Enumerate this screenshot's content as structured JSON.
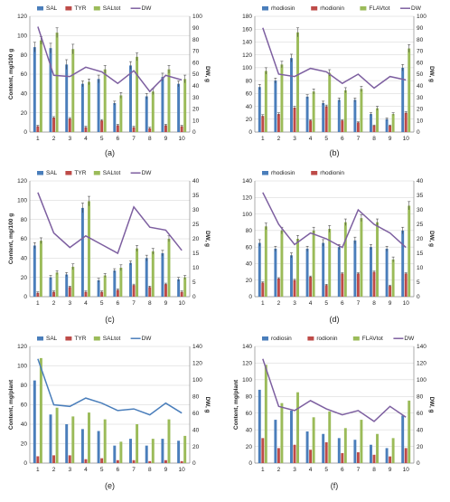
{
  "chart_data": [
    {
      "panel": "(a)",
      "type": "bar",
      "ylabel": "Content, mg/100 g",
      "y2label": "DW, g",
      "ylim": [
        0,
        120
      ],
      "y2lim": [
        0,
        100
      ],
      "ystep": 20,
      "y2step": 10,
      "categories": [
        "1",
        "2",
        "3",
        "4",
        "5",
        "6",
        "7",
        "8",
        "9",
        "10"
      ],
      "series": [
        {
          "name": "SAL",
          "color": "#4a7ebb",
          "values": [
            88,
            87,
            70,
            50,
            55,
            30,
            69,
            37,
            57,
            50
          ],
          "errors": [
            5,
            5,
            5,
            3,
            4,
            2,
            4,
            3,
            4,
            3
          ]
        },
        {
          "name": "TYR",
          "color": "#be4b48",
          "values": [
            6,
            15,
            14,
            5,
            12,
            7,
            5,
            4,
            7,
            6
          ],
          "errors": [
            1,
            1,
            1,
            1,
            1,
            1,
            1,
            1,
            1,
            1
          ]
        },
        {
          "name": "SALtot",
          "color": "#9bbb59",
          "values": [
            95,
            103,
            86,
            52,
            65,
            38,
            78,
            42,
            65,
            55
          ],
          "errors": [
            4,
            5,
            5,
            3,
            4,
            3,
            4,
            3,
            4,
            4
          ]
        }
      ],
      "line": {
        "name": "DW",
        "color": "#7d5fa0",
        "values": [
          91,
          49,
          48,
          56,
          52,
          42,
          53,
          35,
          49,
          45
        ]
      },
      "legend": "top"
    },
    {
      "panel": "(b)",
      "type": "bar",
      "ylabel": "",
      "y2label": "DW, g",
      "ylim": [
        0,
        180
      ],
      "y2lim": [
        0,
        100
      ],
      "ystep": 20,
      "y2step": 10,
      "categories": [
        "1",
        "2",
        "3",
        "4",
        "5",
        "6",
        "7",
        "8",
        "9",
        "10"
      ],
      "series": [
        {
          "name": "rhodiosin",
          "color": "#4a7ebb",
          "values": [
            70,
            80,
            115,
            55,
            45,
            50,
            50,
            28,
            20,
            100
          ],
          "errors": [
            4,
            4,
            6,
            3,
            3,
            3,
            3,
            2,
            2,
            5
          ]
        },
        {
          "name": "rhodionin",
          "color": "#be4b48",
          "values": [
            25,
            28,
            38,
            18,
            40,
            18,
            15,
            10,
            10,
            30
          ],
          "errors": [
            2,
            2,
            2,
            1,
            2,
            1,
            1,
            1,
            1,
            2
          ]
        },
        {
          "name": "FLAVtot",
          "color": "#9bbb59",
          "values": [
            95,
            105,
            155,
            63,
            92,
            65,
            67,
            37,
            28,
            130
          ],
          "errors": [
            5,
            5,
            7,
            4,
            5,
            4,
            4,
            3,
            2,
            6
          ]
        }
      ],
      "line": {
        "name": "DW",
        "color": "#7d5fa0",
        "values": [
          90,
          50,
          48,
          55,
          52,
          42,
          50,
          38,
          48,
          45
        ]
      },
      "legend": "top"
    },
    {
      "panel": "(c)",
      "type": "bar",
      "ylabel": "Content, mg/100 g",
      "y2label": "DW, g",
      "ylim": [
        0,
        120
      ],
      "y2lim": [
        0,
        40
      ],
      "ystep": 20,
      "y2step": 5,
      "categories": [
        "1",
        "2",
        "3",
        "4",
        "5",
        "6",
        "7",
        "8",
        "9",
        "10"
      ],
      "series": [
        {
          "name": "SAL",
          "color": "#4a7ebb",
          "values": [
            53,
            20,
            23,
            92,
            17,
            27,
            35,
            40,
            45,
            18
          ],
          "errors": [
            3,
            2,
            2,
            5,
            2,
            2,
            2,
            3,
            3,
            2
          ]
        },
        {
          "name": "TYR",
          "color": "#be4b48",
          "values": [
            4,
            5,
            10,
            5,
            5,
            7,
            12,
            10,
            13,
            5
          ],
          "errors": [
            1,
            1,
            1,
            1,
            1,
            1,
            1,
            1,
            1,
            1
          ]
        },
        {
          "name": "SALtot",
          "color": "#9bbb59",
          "values": [
            58,
            25,
            31,
            99,
            22,
            30,
            50,
            47,
            60,
            20
          ],
          "errors": [
            3,
            2,
            3,
            5,
            2,
            3,
            3,
            3,
            3,
            2
          ]
        }
      ],
      "line": {
        "name": "DW",
        "color": "#7d5fa0",
        "values": [
          36,
          22,
          17,
          21,
          18,
          15,
          31,
          24,
          23,
          16
        ]
      },
      "legend": "top"
    },
    {
      "panel": "(d)",
      "type": "bar",
      "ylabel": "",
      "y2label": "DW, g",
      "ylim": [
        0,
        140
      ],
      "y2lim": [
        0,
        40
      ],
      "ystep": 20,
      "y2step": 5,
      "categories": [
        "1",
        "2",
        "3",
        "4",
        "5",
        "6",
        "7",
        "8",
        "9",
        "10"
      ],
      "series": [
        {
          "name": "rhodiosin",
          "color": "#4a7ebb",
          "values": [
            65,
            58,
            50,
            58,
            65,
            60,
            68,
            60,
            58,
            80
          ],
          "errors": [
            4,
            3,
            3,
            3,
            4,
            3,
            4,
            3,
            3,
            4
          ]
        },
        {
          "name": "rhodionin",
          "color": "#be4b48",
          "values": [
            17,
            22,
            20,
            24,
            14,
            28,
            28,
            30,
            13,
            28
          ],
          "errors": [
            1,
            1,
            1,
            1,
            1,
            1,
            1,
            1,
            1,
            1
          ]
        },
        {
          "name": "",
          "color": "#9bbb59",
          "values": [
            85,
            80,
            70,
            80,
            82,
            90,
            95,
            90,
            45,
            110
          ],
          "errors": [
            4,
            4,
            4,
            4,
            4,
            4,
            4,
            4,
            3,
            5
          ]
        }
      ],
      "line": {
        "name": "",
        "color": "#7d5fa0",
        "values": [
          36,
          25,
          18,
          22,
          20,
          17,
          30,
          25,
          22,
          17
        ]
      },
      "legend": "top"
    },
    {
      "panel": "(e)",
      "type": "bar",
      "ylabel": "Content, mg/plant",
      "y2label": "DW, g",
      "ylim": [
        0,
        120
      ],
      "y2lim": [
        0,
        140
      ],
      "ystep": 20,
      "y2step": 20,
      "categories": [
        "1",
        "2",
        "3",
        "4",
        "5",
        "6",
        "7",
        "8",
        "9",
        "10"
      ],
      "series": [
        {
          "name": "SAL",
          "color": "#4a7ebb",
          "values": [
            85,
            50,
            40,
            35,
            33,
            18,
            25,
            18,
            25,
            23
          ],
          "errors": []
        },
        {
          "name": "TYR",
          "color": "#be4b48",
          "values": [
            7,
            8,
            8,
            4,
            5,
            3,
            3,
            2,
            3,
            2
          ],
          "errors": []
        },
        {
          "name": "SALtot",
          "color": "#9bbb59",
          "values": [
            108,
            57,
            48,
            52,
            45,
            22,
            40,
            25,
            45,
            28
          ],
          "errors": []
        }
      ],
      "line": {
        "name": "DW",
        "color": "#4a7ebb",
        "values": [
          125,
          70,
          68,
          78,
          72,
          63,
          65,
          58,
          72,
          60
        ]
      },
      "legend": "top"
    },
    {
      "panel": "(f)",
      "type": "bar",
      "ylabel": "Content, mg/plant",
      "y2label": "DW, g",
      "ylim": [
        0,
        140
      ],
      "y2lim": [
        0,
        140
      ],
      "ystep": 20,
      "y2step": 20,
      "categories": [
        "1",
        "2",
        "3",
        "4",
        "5",
        "6",
        "7",
        "8",
        "9",
        "10"
      ],
      "series": [
        {
          "name": "rodiosin",
          "color": "#4a7ebb",
          "values": [
            88,
            52,
            63,
            38,
            35,
            30,
            28,
            22,
            18,
            57
          ],
          "errors": []
        },
        {
          "name": "rodionin",
          "color": "#be4b48",
          "values": [
            30,
            18,
            22,
            16,
            25,
            12,
            13,
            10,
            8,
            18
          ],
          "errors": []
        },
        {
          "name": "FLAVtot",
          "color": "#9bbb59",
          "values": [
            118,
            72,
            85,
            55,
            62,
            42,
            52,
            35,
            30,
            75
          ],
          "errors": []
        }
      ],
      "line": {
        "name": "DW",
        "color": "#7d5fa0",
        "values": [
          125,
          68,
          63,
          75,
          65,
          58,
          63,
          50,
          68,
          55
        ]
      },
      "legend": "top"
    }
  ]
}
